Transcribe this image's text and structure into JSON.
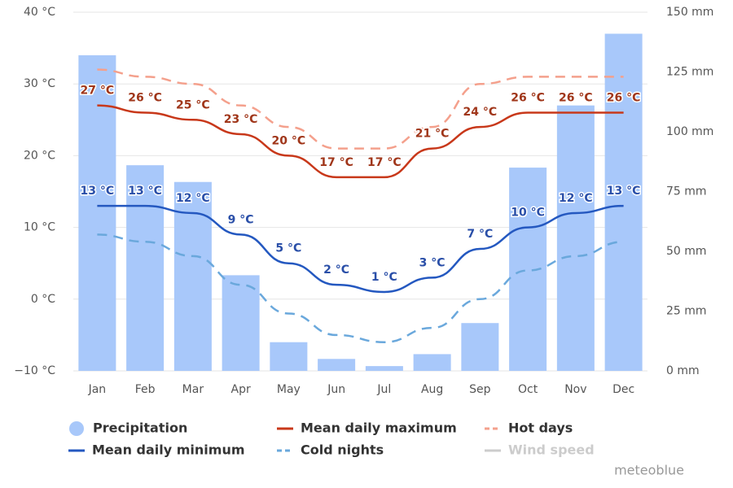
{
  "chart_data": {
    "type": "bar",
    "categories": [
      "Jan",
      "Feb",
      "Mar",
      "Apr",
      "May",
      "Jun",
      "Jul",
      "Aug",
      "Sep",
      "Oct",
      "Nov",
      "Dec"
    ],
    "ylim": [
      -10,
      40
    ],
    "yticks": [
      {
        "value": -10,
        "label": "−10 °C"
      },
      {
        "value": 0,
        "label": "0 °C"
      },
      {
        "value": 10,
        "label": "10 °C"
      },
      {
        "value": 20,
        "label": "20 °C"
      },
      {
        "value": 30,
        "label": "30 °C"
      },
      {
        "value": 40,
        "label": "40 °C"
      }
    ],
    "y2lim": [
      0,
      150
    ],
    "y2ticks": [
      {
        "value": 0,
        "label": "0 mm"
      },
      {
        "value": 25,
        "label": "25 mm"
      },
      {
        "value": 50,
        "label": "50 mm"
      },
      {
        "value": 75,
        "label": "75 mm"
      },
      {
        "value": 100,
        "label": "100 mm"
      },
      {
        "value": 125,
        "label": "125 mm"
      },
      {
        "value": 150,
        "label": "150 mm"
      }
    ],
    "grid": true,
    "series": [
      {
        "name": "Precipitation",
        "type": "bar",
        "axis": "y2",
        "color": "#a8c8fa",
        "values": [
          132,
          86,
          79,
          40,
          12,
          5,
          2,
          7,
          20,
          85,
          111,
          141
        ]
      },
      {
        "name": "Mean daily maximum",
        "type": "line",
        "color": "#c8381a",
        "label_color": "#a0361a",
        "values": [
          27,
          26,
          25,
          23,
          20,
          17,
          17,
          21,
          24,
          26,
          26,
          26
        ],
        "value_labels": [
          "27 °C",
          "26 °C",
          "25 °C",
          "23 °C",
          "20 °C",
          "17 °C",
          "17 °C",
          "21 °C",
          "24 °C",
          "26 °C",
          "26 °C",
          "26 °C"
        ]
      },
      {
        "name": "Hot days",
        "type": "line",
        "dashed": true,
        "color": "#f4a08c",
        "values": [
          32,
          31,
          30,
          27,
          24,
          21,
          21,
          24,
          30,
          31,
          31,
          31
        ]
      },
      {
        "name": "Mean daily minimum",
        "type": "line",
        "color": "#2458c0",
        "label_color": "#2a4fa8",
        "values": [
          13,
          13,
          12,
          9,
          5,
          2,
          1,
          3,
          7,
          10,
          12,
          13
        ],
        "value_labels": [
          "13 °C",
          "13 °C",
          "12 °C",
          "9 °C",
          "5 °C",
          "2 °C",
          "1 °C",
          "3 °C",
          "7 °C",
          "10 °C",
          "12 °C",
          "13 °C"
        ]
      },
      {
        "name": "Cold nights",
        "type": "line",
        "dashed": true,
        "color": "#6aa8dc",
        "values": [
          9,
          8,
          6,
          2,
          -2,
          -5,
          -6,
          -4,
          0,
          4,
          6,
          8
        ]
      },
      {
        "name": "Wind speed",
        "type": "line",
        "color": "#cccccc",
        "visible": false
      }
    ],
    "credit": "meteoblue"
  }
}
